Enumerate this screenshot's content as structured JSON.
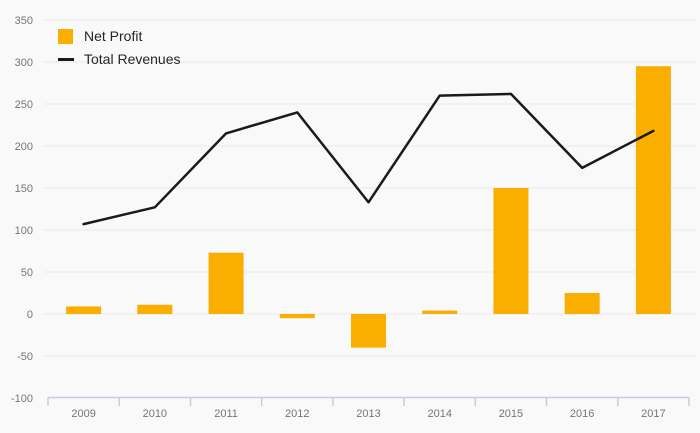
{
  "chart_data": {
    "type": "combo",
    "title": "",
    "xlabel": "",
    "ylabel": "",
    "categories": [
      "2009",
      "2010",
      "2011",
      "2012",
      "2013",
      "2014",
      "2015",
      "2016",
      "2017"
    ],
    "series": [
      {
        "name": "Net Profit",
        "type": "bar",
        "color": "#FAAE00",
        "values": [
          9,
          11,
          73,
          -5,
          -40,
          4,
          150,
          25,
          295
        ]
      },
      {
        "name": "Total Revenues",
        "type": "line",
        "color": "#1A1A1A",
        "values": [
          107,
          127,
          215,
          240,
          133,
          260,
          262,
          174,
          218
        ]
      }
    ],
    "ylim": [
      -100,
      350
    ],
    "ytick_step": 50,
    "yticks": [
      -100,
      -50,
      0,
      50,
      100,
      150,
      200,
      250,
      300,
      350
    ],
    "grid": true,
    "legend_position": "top-left"
  },
  "colors": {
    "background": "#F9F9F9",
    "gridline": "#E9E9E9",
    "axis_line": "#C4CCE4",
    "tick_label": "#757575",
    "legend_text": "#262626"
  }
}
